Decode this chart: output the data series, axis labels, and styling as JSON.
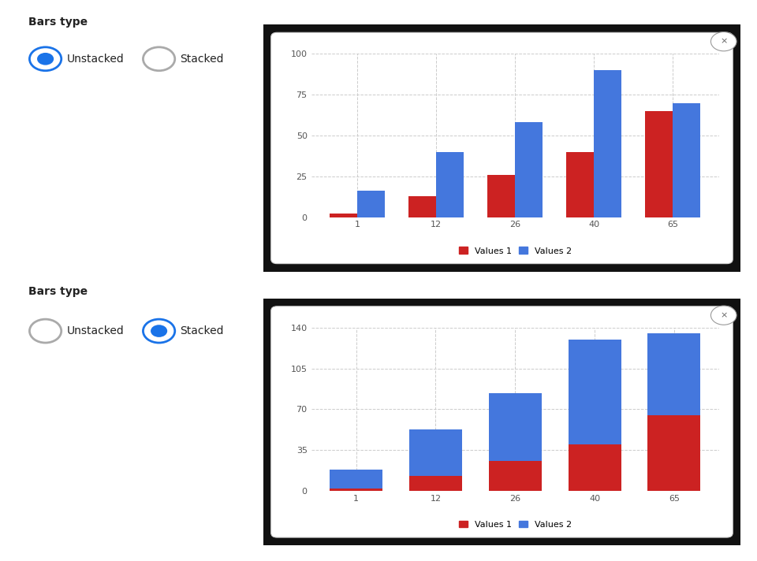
{
  "categories": [
    "1",
    "12",
    "26",
    "40",
    "65"
  ],
  "values1": [
    2,
    13,
    26,
    40,
    65
  ],
  "values2": [
    16,
    40,
    58,
    90,
    70
  ],
  "color1": "#cc2222",
  "color2": "#4477dd",
  "legend1": "Values 1",
  "legend2": "Values 2",
  "unstacked_ylim": [
    0,
    100
  ],
  "unstacked_yticks": [
    0,
    25,
    50,
    75,
    100
  ],
  "stacked_ylim": [
    0,
    140
  ],
  "stacked_yticks": [
    0,
    35,
    70,
    105,
    140
  ],
  "chart_bg": "#ffffff",
  "panel_bg": "#111111",
  "outer_bg": "#ffffff",
  "radio_blue": "#1a73e8",
  "bars_type_label": "Bars type",
  "unstacked_label": "Unstacked",
  "stacked_label": "Stacked",
  "bar_width": 0.35,
  "grid_color": "#cccccc",
  "grid_linestyle": "--",
  "font_color": "#222222",
  "tick_color": "#555555"
}
